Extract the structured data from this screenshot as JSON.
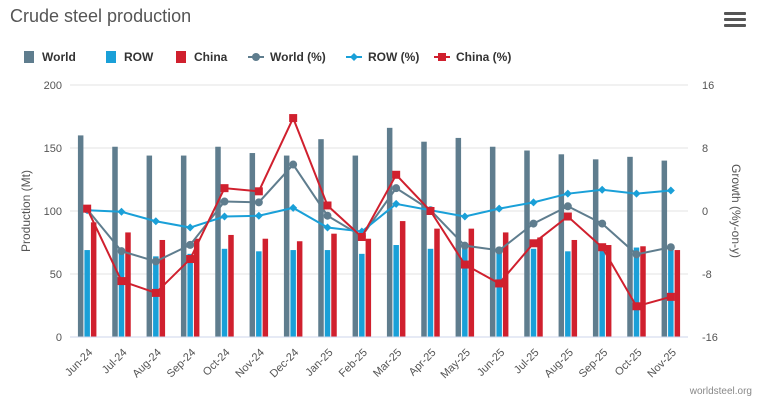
{
  "title": "Crude steel production",
  "menu_icon": "hamburger-menu-icon",
  "credit": "worldsteel.org",
  "colors": {
    "world": "#5f7d8e",
    "row": "#1aa0d8",
    "china": "#d0202e",
    "grid": "#e3e3e3"
  },
  "chart_data": {
    "type": "bar",
    "title": "Crude steel production",
    "categories": [
      "Jun-24",
      "Jul-24",
      "Aug-24",
      "Sep-24",
      "Oct-24",
      "Nov-24",
      "Dec-24",
      "Jan-25",
      "Feb-25",
      "Mar-25",
      "Apr-25",
      "May-25",
      "Jun-25",
      "Jul-25",
      "Aug-25",
      "Sep-25",
      "Oct-25",
      "Nov-25"
    ],
    "ylabel": "Production (Mt)",
    "y2label": "Growth (%y-on-y)",
    "ylim": [
      0,
      200
    ],
    "y2lim": [
      -16,
      16
    ],
    "yticks": [
      0,
      50,
      100,
      150,
      200
    ],
    "y2ticks": [
      -16,
      -8,
      0,
      8,
      16
    ],
    "grid": true,
    "legend_position": "top-left",
    "series": [
      {
        "name": "World",
        "type": "bar",
        "axis": "left",
        "values": [
          160,
          151,
          144,
          144,
          151,
          146,
          144,
          157,
          144,
          166,
          155,
          158,
          151,
          148,
          145,
          141,
          143,
          140
        ]
      },
      {
        "name": "ROW",
        "type": "bar",
        "axis": "left",
        "values": [
          69,
          68,
          64,
          66,
          70,
          68,
          69,
          69,
          66,
          73,
          70,
          72,
          69,
          70,
          68,
          70,
          71,
          71
        ]
      },
      {
        "name": "China",
        "type": "bar",
        "axis": "left",
        "values": [
          91,
          83,
          77,
          78,
          81,
          78,
          76,
          82,
          78,
          92,
          86,
          86,
          83,
          79,
          77,
          73,
          72,
          69
        ]
      },
      {
        "name": "World (%)",
        "type": "line",
        "axis": "right",
        "marker": "circle",
        "values": [
          0.2,
          -5.1,
          -6.4,
          -4.3,
          1.2,
          1.1,
          5.9,
          -0.6,
          -3.2,
          2.9,
          0.1,
          -4.4,
          -5.0,
          -1.6,
          0.6,
          -1.6,
          -5.5,
          -4.6
        ]
      },
      {
        "name": "ROW (%)",
        "type": "line",
        "axis": "right",
        "marker": "diamond",
        "values": [
          0.1,
          -0.1,
          -1.3,
          -2.1,
          -0.7,
          -0.6,
          0.4,
          -2.1,
          -2.6,
          0.9,
          0.1,
          -0.7,
          0.3,
          1.1,
          2.2,
          2.7,
          2.2,
          2.6
        ]
      },
      {
        "name": "China (%)",
        "type": "line",
        "axis": "right",
        "marker": "square",
        "values": [
          0.3,
          -8.9,
          -10.4,
          -6.1,
          2.9,
          2.5,
          11.8,
          0.7,
          -3.3,
          4.6,
          0.0,
          -6.8,
          -9.2,
          -4.1,
          -0.7,
          -4.6,
          -12.1,
          -10.9
        ]
      }
    ]
  }
}
